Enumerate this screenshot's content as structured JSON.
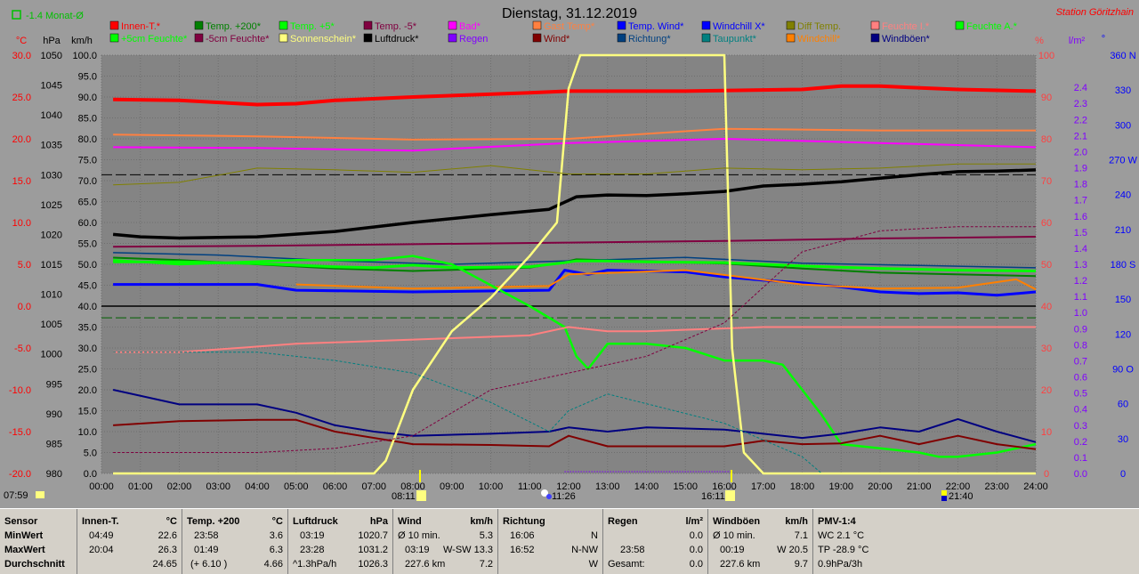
{
  "header": {
    "title": "Dienstag, 31.12.2019",
    "station": "Station Göritzhain",
    "month_avg": "-1.4 Monat-Ø"
  },
  "legend": [
    {
      "label": "Innen-T.*",
      "color": "#ff0000"
    },
    {
      "label": "Temp. +200*",
      "color": "#008000"
    },
    {
      "label": "Temp. +5*",
      "color": "#00ff00"
    },
    {
      "label": "Temp. -5*",
      "color": "#800040"
    },
    {
      "label": "Bad*",
      "color": "#ff00ff"
    },
    {
      "label": "Gast Temp*",
      "color": "#ff8040"
    },
    {
      "label": "Temp. Wind*",
      "color": "#0000ff"
    },
    {
      "label": "Windchill X*",
      "color": "#0000ff"
    },
    {
      "label": "Diff Temp.",
      "color": "#808000"
    },
    {
      "label": "Feuchte I.*",
      "color": "#ff8080"
    },
    {
      "label": "Feuchte A.*",
      "color": "#00ff00"
    },
    {
      "label": "+5cm Feuchte*",
      "color": "#00ff00"
    },
    {
      "label": "-5cm Feuchte*",
      "color": "#800040"
    },
    {
      "label": "Sonnenschein*",
      "color": "#ffff80"
    },
    {
      "label": "Luftdruck*",
      "color": "#000000"
    },
    {
      "label": "Regen",
      "color": "#8000ff"
    },
    {
      "label": "Wind*",
      "color": "#800000"
    },
    {
      "label": "Richtung*",
      "color": "#004080"
    },
    {
      "label": "Taupunkt*",
      "color": "#008080"
    },
    {
      "label": "Windchill*",
      "color": "#ff8000"
    },
    {
      "label": "Windböen*",
      "color": "#000080"
    }
  ],
  "axes": {
    "temp": {
      "unit": "°C",
      "ticks": [
        "30.0",
        "25.0",
        "20.0",
        "15.0",
        "10.0",
        "5.0",
        "0.0",
        "-5.0",
        "-10.0",
        "-15.0",
        "-20.0"
      ],
      "color": "#ff0000"
    },
    "pressure": {
      "unit": "hPa",
      "ticks": [
        "1050",
        "1045",
        "1040",
        "1035",
        "1030",
        "1025",
        "1020",
        "1015",
        "1010",
        "1005",
        "1000",
        "995",
        "990",
        "985",
        "980"
      ]
    },
    "wind": {
      "unit": "km/h",
      "ticks": [
        "100.0",
        "95.0",
        "90.0",
        "85.0",
        "80.0",
        "75.0",
        "70.0",
        "65.0",
        "60.0",
        "55.0",
        "50.0",
        "45.0",
        "40.0",
        "35.0",
        "30.0",
        "25.0",
        "20.0",
        "15.0",
        "10.0",
        "5.0",
        "0.0"
      ]
    },
    "percent": {
      "unit": "%",
      "ticks": [
        "100",
        "90",
        "80",
        "70",
        "60",
        "50",
        "40",
        "30",
        "20",
        "10",
        "0"
      ],
      "color": "#ff4040"
    },
    "rain": {
      "unit": "l/m²",
      "ticks": [
        "2.4",
        "2.3",
        "2.2",
        "2.1",
        "2.0",
        "1.9",
        "1.8",
        "1.7",
        "1.6",
        "1.5",
        "1.4",
        "1.3",
        "1.2",
        "1.1",
        "1.0",
        "0.9",
        "0.8",
        "0.7",
        "0.6",
        "0.5",
        "0.4",
        "0.3",
        "0.2",
        "0.1",
        "0.0"
      ],
      "color": "#8000ff"
    },
    "direction": {
      "unit": "°",
      "ticks": [
        "360 N",
        "330",
        "300",
        "270 W",
        "240",
        "210",
        "180 S",
        "150",
        "120",
        "90 O",
        "60",
        "30",
        "0"
      ],
      "color": "#0000ff"
    },
    "time": {
      "ticks": [
        "00:00",
        "01:00",
        "02:00",
        "03:00",
        "04:00",
        "05:00",
        "06:00",
        "07:00",
        "08:00",
        "09:00",
        "10:00",
        "11:00",
        "12:00",
        "13:00",
        "14:00",
        "15:00",
        "16:00",
        "17:00",
        "18:00",
        "19:00",
        "20:00",
        "21:00",
        "22:00",
        "23:00",
        "24:00"
      ]
    }
  },
  "events": {
    "sunrise": "08:11",
    "noon": "11:26",
    "sunset": "16:11",
    "moon": "21:40",
    "start": "07:59"
  },
  "chart_data": {
    "type": "line",
    "x_unit": "hour",
    "series": [
      {
        "name": "Innen-T.*",
        "axis": "°C",
        "color": "#ff0000",
        "x": [
          0.3,
          2,
          4,
          5,
          6,
          8,
          11,
          12,
          15,
          18,
          19,
          20,
          22,
          24
        ],
        "y": [
          24.7,
          24.6,
          24.1,
          24.2,
          24.6,
          25.0,
          25.5,
          25.7,
          25.7,
          25.9,
          26.3,
          26.3,
          25.9,
          25.7
        ]
      },
      {
        "name": "Gast Temp*",
        "axis": "°C",
        "color": "#ff8040",
        "x": [
          0.3,
          4,
          8,
          12,
          16,
          20,
          24
        ],
        "y": [
          20.5,
          20.3,
          19.9,
          20.0,
          21.2,
          21.0,
          21.0
        ]
      },
      {
        "name": "Bad*",
        "axis": "°C",
        "color": "#ff00ff",
        "x": [
          0.3,
          4,
          8,
          12,
          16,
          20,
          24
        ],
        "y": [
          19.0,
          18.9,
          18.6,
          19.5,
          20.0,
          19.5,
          19.0
        ]
      },
      {
        "name": "Luftdruck*",
        "axis": "hPa",
        "color": "#000000",
        "x": [
          0.3,
          1,
          2,
          4,
          6,
          8,
          10,
          11.5,
          11.9,
          12.2,
          13,
          14,
          15,
          16,
          17,
          18,
          19,
          20,
          21,
          22,
          23,
          24
        ],
        "y": [
          1020.0,
          1019.6,
          1019.4,
          1019.6,
          1020.5,
          1022.0,
          1023.3,
          1024.2,
          1025.4,
          1026.3,
          1026.6,
          1026.5,
          1026.8,
          1027.2,
          1028.1,
          1028.4,
          1028.8,
          1029.4,
          1030.0,
          1030.5,
          1030.6,
          1030.8
        ]
      },
      {
        "name": "Temp. Wind*",
        "axis": "°C",
        "color": "#0000ff",
        "x": [
          0.3,
          2,
          4,
          5,
          8,
          11.5,
          11.9,
          12.5,
          13,
          15,
          16,
          17,
          18,
          19,
          20,
          21,
          22,
          23,
          24
        ],
        "y": [
          2.6,
          2.6,
          2.6,
          1.9,
          1.7,
          1.9,
          4.3,
          3.8,
          4.3,
          4.1,
          3.5,
          3.1,
          2.8,
          2.3,
          1.7,
          1.5,
          1.6,
          1.3,
          1.7
        ]
      },
      {
        "name": "Windchill*",
        "axis": "°C",
        "color": "#ff8000",
        "x": [
          5,
          8,
          11.5,
          12,
          15,
          18,
          20,
          22,
          23.5,
          24
        ],
        "y": [
          2.6,
          2.1,
          2.4,
          3.8,
          4.3,
          2.6,
          2.1,
          2.2,
          3.2,
          2.0
        ]
      },
      {
        "name": "Temp. +200*",
        "axis": "°C",
        "color": "#008000",
        "x": [
          0.3,
          2,
          4,
          6,
          8,
          11,
          11.9,
          12.2,
          16,
          18,
          20,
          24
        ],
        "y": [
          5.8,
          5.5,
          5.0,
          4.5,
          4.2,
          4.6,
          5.3,
          5.6,
          5.1,
          4.5,
          4.0,
          3.6
        ]
      },
      {
        "name": "Richtung*",
        "axis": "°",
        "color": "#004080",
        "x": [
          0.3,
          3,
          6,
          9,
          12,
          15,
          18,
          21,
          24
        ],
        "y": [
          190,
          188,
          183,
          180,
          183,
          186,
          181,
          179,
          177
        ]
      },
      {
        "name": "Temp. +5*",
        "axis": "°C",
        "color": "#00ff00",
        "x": [
          0.3,
          2,
          4,
          6,
          7,
          8,
          9,
          11,
          11.9,
          12.2,
          13,
          14,
          16,
          17,
          18,
          20,
          22,
          24
        ],
        "y": [
          5.3,
          5.3,
          5.1,
          4.7,
          4.6,
          4.9,
          4.6,
          4.7,
          5.2,
          5.4,
          5.4,
          5.3,
          5.2,
          5.0,
          4.8,
          4.5,
          4.3,
          4.2
        ]
      },
      {
        "name": "Temp. -5*",
        "axis": "°C",
        "color": "#800040",
        "x": [
          0.3,
          4,
          8,
          12,
          16,
          20,
          24
        ],
        "y": [
          7.1,
          7.2,
          7.4,
          7.6,
          7.8,
          8.1,
          8.3
        ]
      },
      {
        "name": "+5cm Feuchte*",
        "axis": "%",
        "color": "#00ff00",
        "x": [
          0.3,
          2,
          5,
          7,
          8,
          9,
          10,
          11,
          11.9,
          12.2,
          12.5,
          13,
          14,
          15,
          16,
          17,
          17.5,
          18,
          18.5,
          19,
          20,
          21,
          21.5,
          22,
          23,
          24
        ],
        "y": [
          51,
          50,
          51,
          51,
          52,
          50,
          45,
          40,
          35,
          28,
          25,
          31,
          31,
          30,
          27,
          27,
          26,
          20,
          14,
          7,
          6,
          5,
          4,
          4,
          5,
          7
        ]
      },
      {
        "name": "Feuchte I.*",
        "axis": "%",
        "color": "#ff8080",
        "x": [
          0.3,
          2,
          5,
          8,
          11,
          12,
          13,
          14,
          17,
          20,
          24
        ],
        "y": [
          29,
          29,
          31,
          32,
          33,
          35,
          34,
          34,
          35,
          35,
          35
        ]
      },
      {
        "name": "Wind*",
        "axis": "km/h",
        "color": "#800000",
        "x": [
          0.3,
          2,
          4,
          5,
          6,
          8,
          10,
          11.5,
          12,
          13,
          16,
          17,
          18,
          19,
          20,
          21,
          22,
          23,
          24
        ],
        "y": [
          11.5,
          12.5,
          12.8,
          12.8,
          10.0,
          7.0,
          6.8,
          6.5,
          9.0,
          6.5,
          6.5,
          7.8,
          7.0,
          7.2,
          9.0,
          7.0,
          9.0,
          7.0,
          5.8
        ]
      },
      {
        "name": "Windböen*",
        "axis": "km/h",
        "color": "#000080",
        "x": [
          0.3,
          2,
          4,
          5,
          6,
          7,
          8,
          10,
          11.5,
          12,
          13,
          14,
          16,
          17,
          18,
          19,
          20,
          21,
          22,
          23,
          24
        ],
        "y": [
          20.0,
          16.5,
          16.5,
          14.5,
          11.5,
          10.0,
          9.0,
          9.5,
          10.0,
          11.0,
          10.0,
          11.0,
          10.5,
          9.5,
          8.5,
          9.5,
          11.0,
          10.0,
          13.0,
          10.0,
          7.5
        ]
      },
      {
        "name": "Sonnenschein*",
        "axis": "%",
        "color": "#ffff80",
        "x": [
          0.3,
          7,
          7.3,
          8,
          9,
          10,
          11,
          11.7,
          12,
          12.3,
          12.5,
          15,
          16,
          16.2,
          16.5,
          17,
          24
        ],
        "y": [
          0,
          0,
          3,
          20,
          34,
          42,
          52,
          60,
          92,
          100,
          100,
          100,
          100,
          30,
          5,
          0,
          0
        ]
      },
      {
        "name": "Diff Temp.",
        "axis": "°C",
        "color": "#808000",
        "x": [
          0.3,
          2,
          4,
          6,
          8,
          10,
          12,
          14,
          16,
          18,
          20,
          22,
          24
        ],
        "y": [
          14.5,
          14.8,
          16.5,
          16.3,
          16.0,
          16.8,
          15.8,
          15.8,
          16.5,
          16.3,
          16.5,
          17.0,
          17.0
        ]
      },
      {
        "name": "Taupunkt*",
        "axis": "%",
        "color": "#008080",
        "x": [
          0.3,
          2,
          4,
          6,
          8,
          10,
          11.5,
          12,
          13,
          16,
          17,
          18,
          18.5
        ],
        "y": [
          29,
          29,
          29,
          27,
          24,
          17,
          10,
          15,
          19,
          12,
          8,
          4,
          0
        ]
      },
      {
        "name": "-5cm Feuchte*",
        "axis": "%",
        "color": "#800040",
        "x": [
          0.3,
          4,
          6,
          8,
          10,
          12,
          14,
          16,
          18,
          20,
          22,
          24
        ],
        "y": [
          5,
          5,
          6,
          9,
          20,
          24,
          28,
          36,
          53,
          58,
          59,
          59
        ]
      }
    ],
    "xlim": [
      0,
      24
    ]
  },
  "stats": {
    "sensor": {
      "header": "Sensor",
      "rows": [
        "MinWert",
        "MaxWert",
        "Durchschnitt"
      ]
    },
    "innen": {
      "name": "Innen-T.",
      "unit": "°C",
      "r1": [
        "04:49",
        "22.6"
      ],
      "r2": [
        "20:04",
        "26.3"
      ],
      "r3": [
        "",
        "24.65"
      ]
    },
    "temp200": {
      "name": "Temp. +200",
      "unit": "°C",
      "r1": [
        "23:58",
        "3.6"
      ],
      "r2": [
        "01:49",
        "6.3"
      ],
      "r3": [
        "(+ 6.10 )",
        "4.66"
      ]
    },
    "luftdruck": {
      "name": "Luftdruck",
      "unit": "hPa",
      "r1": [
        "03:19",
        "1020.7"
      ],
      "r2": [
        "23:28",
        "1031.2"
      ],
      "r3": [
        "^1.3hPa/h",
        "1026.3"
      ]
    },
    "wind": {
      "name": "Wind",
      "unit": "km/h",
      "r1": [
        "Ø 10 min.",
        "5.3"
      ],
      "r2": [
        "03:19",
        "W-SW 13.3"
      ],
      "r3": [
        "227.6 km",
        "7.2"
      ]
    },
    "richtung": {
      "name": "Richtung",
      "r1": [
        "16:06",
        "N"
      ],
      "r2": [
        "16:52",
        "N-NW"
      ],
      "r3": [
        "",
        "W"
      ]
    },
    "regen": {
      "name": "Regen",
      "unit": "l/m²",
      "r1": [
        "",
        "0.0"
      ],
      "r2": [
        "23:58",
        "0.0"
      ],
      "r3": [
        "Gesamt:",
        "0.0"
      ]
    },
    "boeen": {
      "name": "Windböen",
      "unit": "km/h",
      "r1": [
        "Ø 10 min.",
        "7.1"
      ],
      "r2": [
        "00:19",
        "W 20.5"
      ],
      "r3": [
        "227.6 km",
        "9.7"
      ]
    },
    "pmv": {
      "name": "PMV-1:4",
      "r1": "WC 2.1 °C",
      "r2": "TP -28.9 °C",
      "r3": "0.9hPa/3h"
    }
  }
}
